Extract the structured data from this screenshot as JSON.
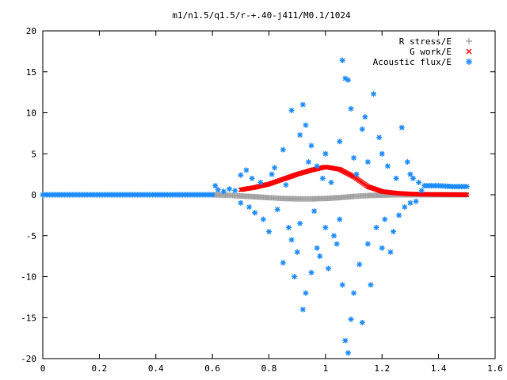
{
  "chart_data": {
    "type": "scatter",
    "title": "m1/n1.5/q1.5/r-+.40-j411/M0.1/1024",
    "xlabel": "",
    "ylabel": "",
    "xlim": [
      0,
      1.6
    ],
    "ylim": [
      -20,
      20
    ],
    "xticks": [
      "0",
      "0.2",
      "0.4",
      "0.6",
      "0.8",
      "1",
      "1.2",
      "1.4",
      "1.6"
    ],
    "yticks": [
      "20",
      "15",
      "10",
      "5",
      "0",
      "-5",
      "-10",
      "-15",
      "-20"
    ],
    "grid": false,
    "legend_position": "top-right",
    "series": [
      {
        "name": "R stress/E",
        "marker": "+",
        "color": "#a0a0a0",
        "points": [
          [
            0.6,
            0
          ],
          [
            0.65,
            -0.05
          ],
          [
            0.7,
            -0.15
          ],
          [
            0.75,
            -0.25
          ],
          [
            0.8,
            -0.35
          ],
          [
            0.85,
            -0.45
          ],
          [
            0.9,
            -0.5
          ],
          [
            0.95,
            -0.5
          ],
          [
            1.0,
            -0.45
          ],
          [
            1.05,
            -0.35
          ],
          [
            1.1,
            -0.2
          ],
          [
            1.15,
            -0.1
          ],
          [
            1.2,
            -0.05
          ],
          [
            1.25,
            0
          ],
          [
            1.3,
            0
          ],
          [
            1.35,
            0
          ],
          [
            1.4,
            0
          ],
          [
            1.45,
            0
          ],
          [
            1.5,
            0
          ]
        ]
      },
      {
        "name": "G work/E",
        "marker": "x",
        "color": "#ff0000",
        "points": [
          [
            0.7,
            0.6
          ],
          [
            0.75,
            0.9
          ],
          [
            0.8,
            1.3
          ],
          [
            0.85,
            1.9
          ],
          [
            0.9,
            2.5
          ],
          [
            0.95,
            3.0
          ],
          [
            1.0,
            3.4
          ],
          [
            1.05,
            3.1
          ],
          [
            1.1,
            2.2
          ],
          [
            1.15,
            1.0
          ],
          [
            1.2,
            0.4
          ],
          [
            1.25,
            0.2
          ],
          [
            1.3,
            0.1
          ],
          [
            1.35,
            0.05
          ],
          [
            1.4,
            0.03
          ],
          [
            1.45,
            0.02
          ],
          [
            1.5,
            0
          ]
        ]
      },
      {
        "name": "Acoustic flux/E",
        "marker": "*",
        "color": "#1e8cff",
        "points": [
          [
            0.0,
            0
          ],
          [
            0.1,
            0
          ],
          [
            0.2,
            0
          ],
          [
            0.3,
            0
          ],
          [
            0.4,
            0
          ],
          [
            0.5,
            0
          ],
          [
            0.6,
            0
          ],
          [
            0.61,
            1.1
          ],
          [
            0.62,
            0.6
          ],
          [
            0.64,
            0.4
          ],
          [
            0.66,
            0.7
          ],
          [
            0.68,
            0.5
          ],
          [
            0.7,
            2.4
          ],
          [
            0.7,
            -1.0
          ],
          [
            0.72,
            3.0
          ],
          [
            0.73,
            -1.5
          ],
          [
            0.74,
            2.0
          ],
          [
            0.75,
            -2.2
          ],
          [
            0.77,
            1.5
          ],
          [
            0.78,
            -3.0
          ],
          [
            0.8,
            -4.5
          ],
          [
            0.81,
            2.5
          ],
          [
            0.82,
            3.3
          ],
          [
            0.83,
            -1.8
          ],
          [
            0.85,
            -8.3
          ],
          [
            0.85,
            5.5
          ],
          [
            0.86,
            1.2
          ],
          [
            0.87,
            -4.0
          ],
          [
            0.88,
            10.3
          ],
          [
            0.88,
            -5.5
          ],
          [
            0.89,
            -10.0
          ],
          [
            0.9,
            -7.0
          ],
          [
            0.91,
            7.3
          ],
          [
            0.91,
            -3.5
          ],
          [
            0.92,
            11.0
          ],
          [
            0.92,
            -14.0
          ],
          [
            0.93,
            8.5
          ],
          [
            0.93,
            -12.0
          ],
          [
            0.94,
            4.0
          ],
          [
            0.95,
            6.0
          ],
          [
            0.95,
            -9.5
          ],
          [
            0.96,
            -2.0
          ],
          [
            0.97,
            3.5
          ],
          [
            0.97,
            -6.5
          ],
          [
            0.98,
            -7.5
          ],
          [
            0.99,
            2.0
          ],
          [
            1.0,
            -4.0
          ],
          [
            1.0,
            5.0
          ],
          [
            1.01,
            -9.0
          ],
          [
            1.02,
            1.5
          ],
          [
            1.03,
            -5.0
          ],
          [
            1.04,
            -6.0
          ],
          [
            1.05,
            -3.0
          ],
          [
            1.05,
            6.5
          ],
          [
            1.06,
            -11.0
          ],
          [
            1.06,
            16.4
          ],
          [
            1.07,
            -17.8
          ],
          [
            1.07,
            14.2
          ],
          [
            1.08,
            -19.3
          ],
          [
            1.08,
            14.0
          ],
          [
            1.09,
            10.5
          ],
          [
            1.09,
            -15.2
          ],
          [
            1.1,
            -12.0
          ],
          [
            1.1,
            4.5
          ],
          [
            1.11,
            2.5
          ],
          [
            1.12,
            -8.5
          ],
          [
            1.13,
            8.0
          ],
          [
            1.13,
            -15.6
          ],
          [
            1.14,
            9.5
          ],
          [
            1.15,
            4.0
          ],
          [
            1.15,
            -6.0
          ],
          [
            1.16,
            -11.0
          ],
          [
            1.17,
            12.3
          ],
          [
            1.18,
            -4.0
          ],
          [
            1.19,
            7.0
          ],
          [
            1.2,
            5.0
          ],
          [
            1.2,
            -6.5
          ],
          [
            1.21,
            -3.0
          ],
          [
            1.22,
            3.5
          ],
          [
            1.23,
            -7.0
          ],
          [
            1.24,
            -4.5
          ],
          [
            1.25,
            2.0
          ],
          [
            1.26,
            -2.5
          ],
          [
            1.27,
            8.2
          ],
          [
            1.28,
            -1.5
          ],
          [
            1.29,
            4.0
          ],
          [
            1.3,
            2.5
          ],
          [
            1.3,
            -1.0
          ],
          [
            1.31,
            2.0
          ],
          [
            1.32,
            -0.8
          ],
          [
            1.33,
            1.5
          ],
          [
            1.34,
            0.5
          ],
          [
            1.35,
            1.1
          ],
          [
            1.4,
            1.1
          ],
          [
            1.45,
            1.0
          ],
          [
            1.5,
            1.0
          ]
        ]
      }
    ]
  }
}
